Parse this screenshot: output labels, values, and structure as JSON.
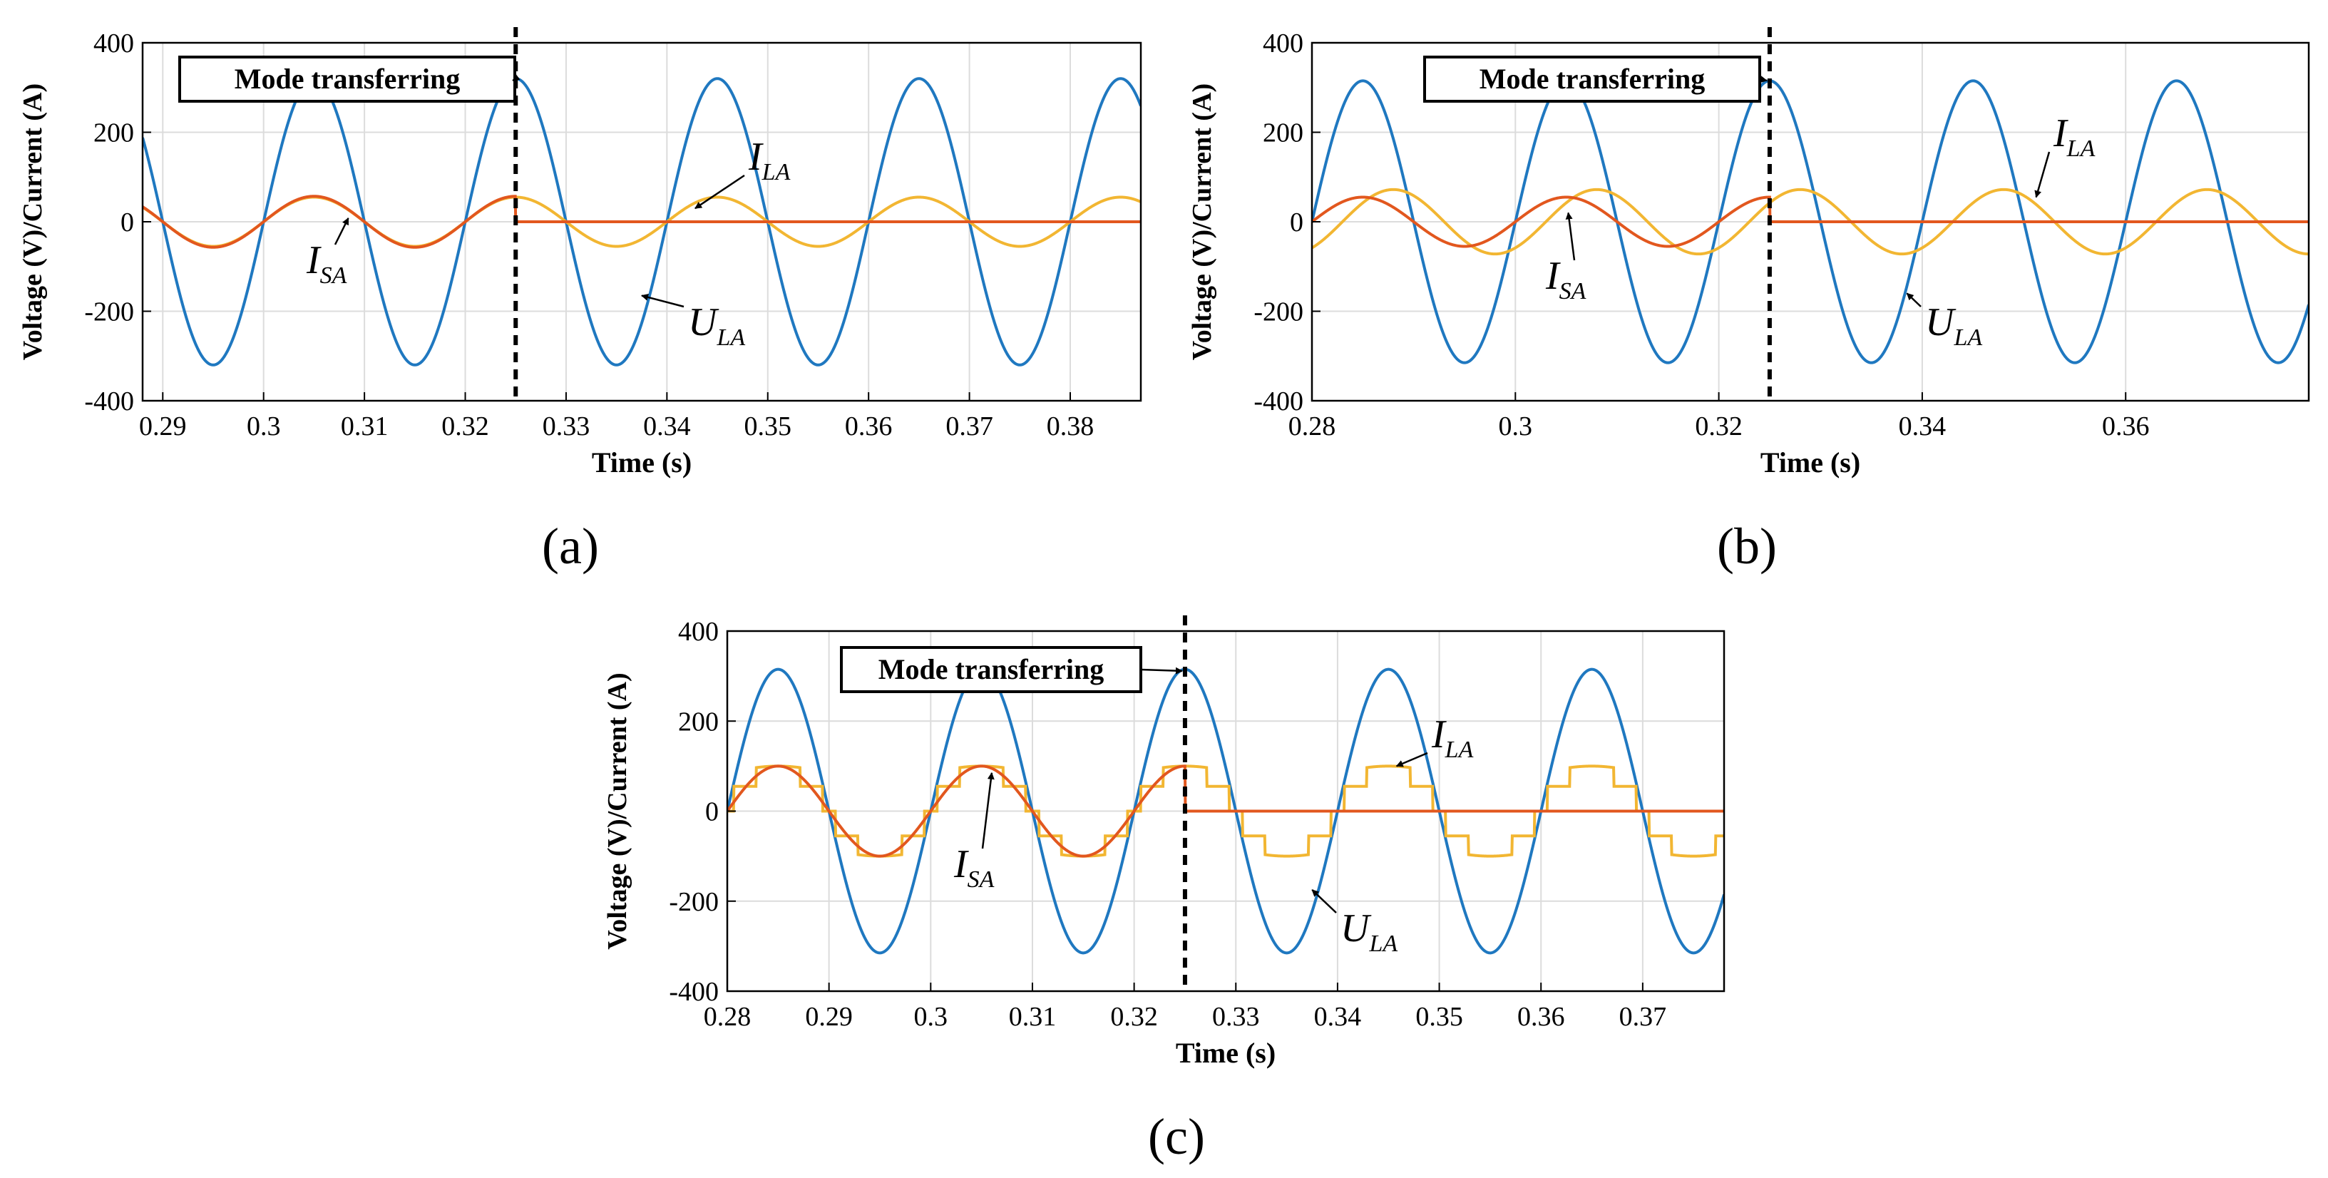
{
  "chart_data": [
    {
      "panel_label": "(a)",
      "type": "line",
      "xlabel": "Time (s)",
      "ylabel": "Voltage (V)/Current (A)",
      "xlim": [
        0.288,
        0.387
      ],
      "ylim": [
        -400,
        400
      ],
      "xticks": [
        0.29,
        0.3,
        0.31,
        0.32,
        0.33,
        0.34,
        0.35,
        0.36,
        0.37,
        0.38
      ],
      "xtick_labels": [
        "0.29",
        "0.3",
        "0.31",
        "0.32",
        "0.33",
        "0.34",
        "0.35",
        "0.36",
        "0.37",
        "0.38"
      ],
      "yticks": [
        -400,
        -200,
        0,
        200,
        400
      ],
      "ytick_labels": [
        "-400",
        "-200",
        "0",
        "200",
        "400"
      ],
      "grid": true,
      "transfer_time": 0.325,
      "mode_annotation": "Mode transferring",
      "series": [
        {
          "name": "U",
          "subscript": "LA",
          "color": "#1f78c0",
          "kind": "sine",
          "amplitude": 320,
          "freq_hz": 50,
          "phase_deg": 0
        },
        {
          "name": "I",
          "subscript": "LA",
          "color": "#f2b632",
          "kind": "sine",
          "amplitude": 55,
          "freq_hz": 50,
          "phase_deg": 0
        },
        {
          "name": "I",
          "subscript": "SA",
          "color": "#e2571e",
          "kind": "sine_until_transfer",
          "amplitude": 57,
          "freq_hz": 50,
          "phase_deg": 0,
          "value_after": 0
        }
      ]
    },
    {
      "panel_label": "(b)",
      "type": "line",
      "xlabel": "Time (s)",
      "ylabel": "Voltage (V)/Current (A)",
      "xlim": [
        0.28,
        0.378
      ],
      "ylim": [
        -400,
        400
      ],
      "xticks": [
        0.28,
        0.3,
        0.32,
        0.34,
        0.36
      ],
      "xtick_labels": [
        "0.28",
        "0.3",
        "0.32",
        "0.34",
        "0.36"
      ],
      "yticks": [
        -400,
        -200,
        0,
        200,
        400
      ],
      "ytick_labels": [
        "-400",
        "-200",
        "0",
        "200",
        "400"
      ],
      "grid": true,
      "transfer_time": 0.325,
      "mode_annotation": "Mode transferring",
      "series": [
        {
          "name": "U",
          "subscript": "LA",
          "color": "#1f78c0",
          "kind": "sine",
          "amplitude": 315,
          "freq_hz": 50,
          "phase_deg": 0
        },
        {
          "name": "I",
          "subscript": "LA",
          "color": "#f2b632",
          "kind": "sine",
          "amplitude": 72,
          "freq_hz": 50,
          "phase_deg": -54
        },
        {
          "name": "I",
          "subscript": "SA",
          "color": "#e2571e",
          "kind": "sine_until_transfer",
          "amplitude": 55,
          "freq_hz": 50,
          "phase_deg": 0,
          "value_after": 0
        }
      ]
    },
    {
      "panel_label": "(c)",
      "type": "line",
      "xlabel": "Time (s)",
      "ylabel": "Voltage (V)/Current (A)",
      "xlim": [
        0.28,
        0.378
      ],
      "ylim": [
        -400,
        400
      ],
      "xticks": [
        0.28,
        0.29,
        0.3,
        0.31,
        0.32,
        0.33,
        0.34,
        0.35,
        0.36,
        0.37
      ],
      "xtick_labels": [
        "0.28",
        "0.29",
        "0.3",
        "0.31",
        "0.32",
        "0.33",
        "0.34",
        "0.35",
        "0.36",
        "0.37"
      ],
      "yticks": [
        -400,
        -200,
        0,
        200,
        400
      ],
      "ytick_labels": [
        "-400",
        "-200",
        "0",
        "200",
        "400"
      ],
      "grid": true,
      "transfer_time": 0.325,
      "mode_annotation": "Mode transferring",
      "series": [
        {
          "name": "U",
          "subscript": "LA",
          "color": "#1f78c0",
          "kind": "sine",
          "amplitude": 315,
          "freq_hz": 50,
          "phase_deg": 0
        },
        {
          "name": "I",
          "subscript": "LA",
          "color": "#f2b632",
          "kind": "stepped_sine",
          "amplitude": 100,
          "freq_hz": 50,
          "phase_deg": 0
        },
        {
          "name": "I",
          "subscript": "SA",
          "color": "#e2571e",
          "kind": "sine_until_transfer",
          "amplitude": 100,
          "freq_hz": 50,
          "phase_deg": 0,
          "value_after": 0
        }
      ]
    }
  ]
}
